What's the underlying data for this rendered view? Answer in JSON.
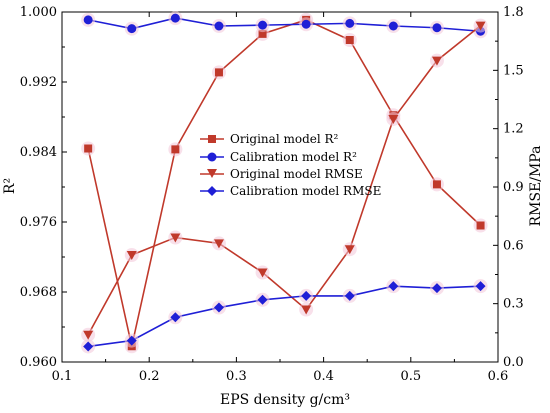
{
  "chart_data": {
    "type": "line",
    "xlabel": "EPS density g/cm³",
    "ylabel_left": "R²",
    "ylabel_right": "RMSE/MPa",
    "xlim": [
      0.1,
      0.6
    ],
    "xticks": [
      "0.1",
      "0.2",
      "0.3",
      "0.4",
      "0.5",
      "0.6"
    ],
    "ylim_left": [
      0.96,
      1.0
    ],
    "yticks_left": [
      "0.960",
      "0.968",
      "0.976",
      "0.984",
      "0.992",
      "1.000"
    ],
    "ylim_right": [
      0.0,
      1.8
    ],
    "yticks_right": [
      "0.0",
      "0.3",
      "0.6",
      "0.9",
      "1.2",
      "1.5",
      "1.8"
    ],
    "grid": false,
    "legend_position": "center",
    "x": [
      0.13,
      0.18,
      0.23,
      0.28,
      0.33,
      0.38,
      0.43,
      0.48,
      0.53,
      0.58
    ],
    "series": [
      {
        "name": "Original model R²",
        "axis": "left",
        "marker": "square",
        "color": "#c0392b",
        "values": [
          0.9844,
          0.9618,
          0.9843,
          0.9931,
          0.9975,
          0.9991,
          0.9968,
          0.9882,
          0.9803,
          0.9756
        ]
      },
      {
        "name": "Calibration model R²",
        "axis": "left",
        "marker": "circle",
        "color": "#1f1fd6",
        "values": [
          0.9991,
          0.9981,
          0.9993,
          0.9984,
          0.9985,
          0.9986,
          0.9987,
          0.9984,
          0.9982,
          0.9978
        ]
      },
      {
        "name": "Original model RMSE",
        "axis": "right",
        "marker": "triangle-down",
        "color": "#c0392b",
        "values": [
          0.14,
          0.55,
          0.64,
          0.61,
          0.46,
          0.27,
          0.58,
          1.25,
          1.55,
          1.73
        ]
      },
      {
        "name": "Calibration model RMSE",
        "axis": "right",
        "marker": "diamond",
        "color": "#1f1fd6",
        "values": [
          0.08,
          0.11,
          0.23,
          0.28,
          0.32,
          0.34,
          0.34,
          0.39,
          0.38,
          0.39
        ]
      }
    ]
  }
}
